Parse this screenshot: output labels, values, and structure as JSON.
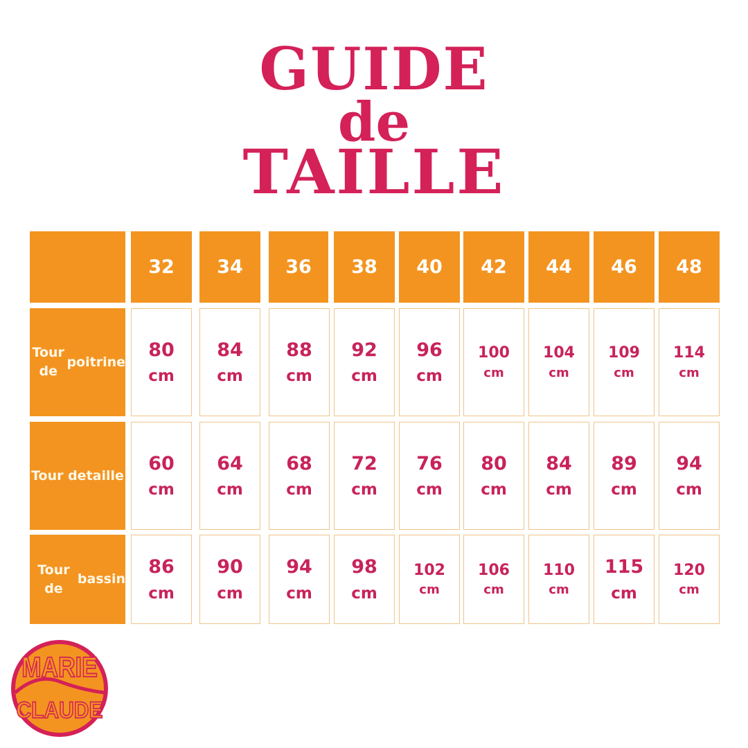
{
  "title": {
    "line1": "GUIDE",
    "line2": "de",
    "line3": "TAILLE"
  },
  "colors": {
    "title": "#d42158",
    "header_bg": "#f39420",
    "value_text": "#c8235a",
    "cell_border": "#f0c48a"
  },
  "table": {
    "sizes": [
      "32",
      "34",
      "36",
      "38",
      "40",
      "42",
      "44",
      "46",
      "48"
    ],
    "unit": "cm",
    "rows": [
      {
        "label_line1": "Tour de",
        "label_line2": "poitrine",
        "values": [
          "80",
          "84",
          "88",
          "92",
          "96",
          "100",
          "104",
          "109",
          "114"
        ]
      },
      {
        "label_line1": "Tour de",
        "label_line2": "taille",
        "values": [
          "60",
          "64",
          "68",
          "72",
          "76",
          "80",
          "84",
          "89",
          "94"
        ]
      },
      {
        "label_line1": "Tour de",
        "label_line2": "bassin",
        "values": [
          "86",
          "90",
          "94",
          "98",
          "102",
          "106",
          "110",
          "115",
          "120"
        ]
      }
    ]
  },
  "logo": {
    "text": "MARIE CLAUDE"
  }
}
